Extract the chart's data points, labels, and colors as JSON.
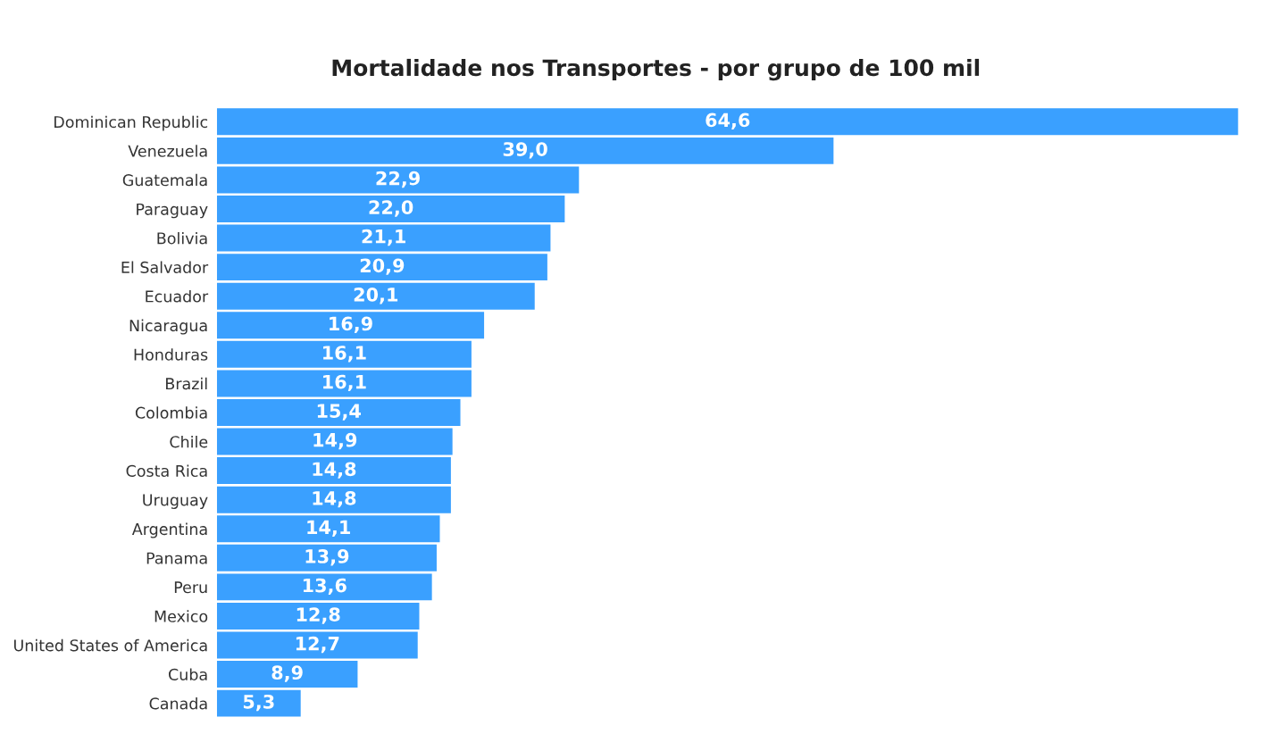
{
  "chart_data": {
    "type": "bar",
    "orientation": "horizontal",
    "title": "Mortalidade nos Transportes - por grupo de 100 mil",
    "tick_labels": "y",
    "categories": [
      "Dominican Republic",
      "Venezuela",
      "Guatemala",
      "Paraguay",
      "Bolivia",
      "El Salvador",
      "Ecuador",
      "Nicaragua",
      "Honduras",
      "Brazil",
      "Colombia",
      "Chile",
      "Costa Rica",
      "Uruguay",
      "Argentina",
      "Panama",
      "Peru",
      "Mexico",
      "United States of America",
      "Cuba",
      "Canada"
    ],
    "values": [
      64.6,
      39.0,
      22.9,
      22.0,
      21.1,
      20.9,
      20.1,
      16.9,
      16.1,
      16.1,
      15.4,
      14.9,
      14.8,
      14.8,
      14.1,
      13.9,
      13.6,
      12.8,
      12.7,
      8.9,
      5.3
    ],
    "value_labels": [
      "64,6",
      "39,0",
      "22,9",
      "22,0",
      "21,1",
      "20,9",
      "20,1",
      "16,9",
      "16,1",
      "16,1",
      "15,4",
      "14,9",
      "14,8",
      "14,8",
      "14,1",
      "13,9",
      "13,6",
      "12,8",
      "12,7",
      "8,9",
      "5,3"
    ],
    "color": "#3aa0ff",
    "grid": false,
    "legend": false
  }
}
